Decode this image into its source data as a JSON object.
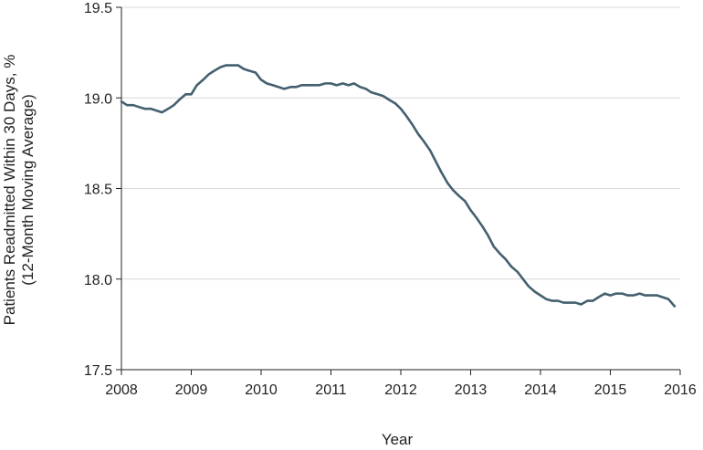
{
  "chart_data": {
    "type": "line",
    "title": "",
    "xlabel": "Year",
    "ylabel_lines": [
      "Patients Readmitted Within 30 Days, %",
      "(12-Month Moving Average)"
    ],
    "xlim": [
      2008,
      2016
    ],
    "ylim": [
      17.5,
      19.5
    ],
    "x_ticks": [
      2008,
      2009,
      2010,
      2011,
      2012,
      2013,
      2014,
      2015,
      2016
    ],
    "x_tick_labels": [
      "2008",
      "2009",
      "2010",
      "2011",
      "2012",
      "2013",
      "2014",
      "2015",
      "2016"
    ],
    "y_ticks": [
      17.5,
      18.0,
      18.5,
      19.0,
      19.5
    ],
    "y_tick_labels": [
      "17.5",
      "18.0",
      "18.5",
      "19.0",
      "19.5"
    ],
    "grid": "horizontal",
    "legend": "none",
    "line_color": "#44606f",
    "grid_color": "#d9d9d9",
    "series": [
      {
        "x": [
          2008.0,
          2008.08,
          2008.17,
          2008.25,
          2008.33,
          2008.42,
          2008.5,
          2008.58,
          2008.67,
          2008.75,
          2008.83,
          2008.92,
          2009.0,
          2009.08,
          2009.17,
          2009.25,
          2009.33,
          2009.42,
          2009.5,
          2009.58,
          2009.67,
          2009.75,
          2009.83,
          2009.92,
          2010.0,
          2010.08,
          2010.17,
          2010.25,
          2010.33,
          2010.42,
          2010.5,
          2010.58,
          2010.67,
          2010.75,
          2010.83,
          2010.92,
          2011.0,
          2011.08,
          2011.17,
          2011.25,
          2011.33,
          2011.42,
          2011.5,
          2011.58,
          2011.67,
          2011.75,
          2011.83,
          2011.92,
          2012.0,
          2012.08,
          2012.17,
          2012.25,
          2012.33,
          2012.42,
          2012.5,
          2012.58,
          2012.67,
          2012.75,
          2012.83,
          2012.92,
          2013.0,
          2013.08,
          2013.17,
          2013.25,
          2013.33,
          2013.42,
          2013.5,
          2013.58,
          2013.67,
          2013.75,
          2013.83,
          2013.92,
          2014.0,
          2014.08,
          2014.17,
          2014.25,
          2014.33,
          2014.42,
          2014.5,
          2014.58,
          2014.67,
          2014.75,
          2014.83,
          2014.92,
          2015.0,
          2015.08,
          2015.17,
          2015.25,
          2015.33,
          2015.42,
          2015.5,
          2015.58,
          2015.67,
          2015.75,
          2015.83,
          2015.92
        ],
        "y": [
          18.98,
          18.96,
          18.96,
          18.95,
          18.94,
          18.94,
          18.93,
          18.92,
          18.94,
          18.96,
          18.99,
          19.02,
          19.02,
          19.07,
          19.1,
          19.13,
          19.15,
          19.17,
          19.18,
          19.18,
          19.18,
          19.16,
          19.15,
          19.14,
          19.1,
          19.08,
          19.07,
          19.06,
          19.05,
          19.06,
          19.06,
          19.07,
          19.07,
          19.07,
          19.07,
          19.08,
          19.08,
          19.07,
          19.08,
          19.07,
          19.08,
          19.06,
          19.05,
          19.03,
          19.02,
          19.01,
          18.99,
          18.97,
          18.94,
          18.9,
          18.85,
          18.8,
          18.76,
          18.71,
          18.65,
          18.59,
          18.53,
          18.49,
          18.46,
          18.43,
          18.38,
          18.34,
          18.29,
          18.24,
          18.18,
          18.14,
          18.11,
          18.07,
          18.04,
          18.0,
          17.96,
          17.93,
          17.91,
          17.89,
          17.88,
          17.88,
          17.87,
          17.87,
          17.87,
          17.86,
          17.88,
          17.88,
          17.9,
          17.92,
          17.91,
          17.92,
          17.92,
          17.91,
          17.91,
          17.92,
          17.91,
          17.91,
          17.91,
          17.9,
          17.89,
          17.85
        ]
      }
    ]
  }
}
